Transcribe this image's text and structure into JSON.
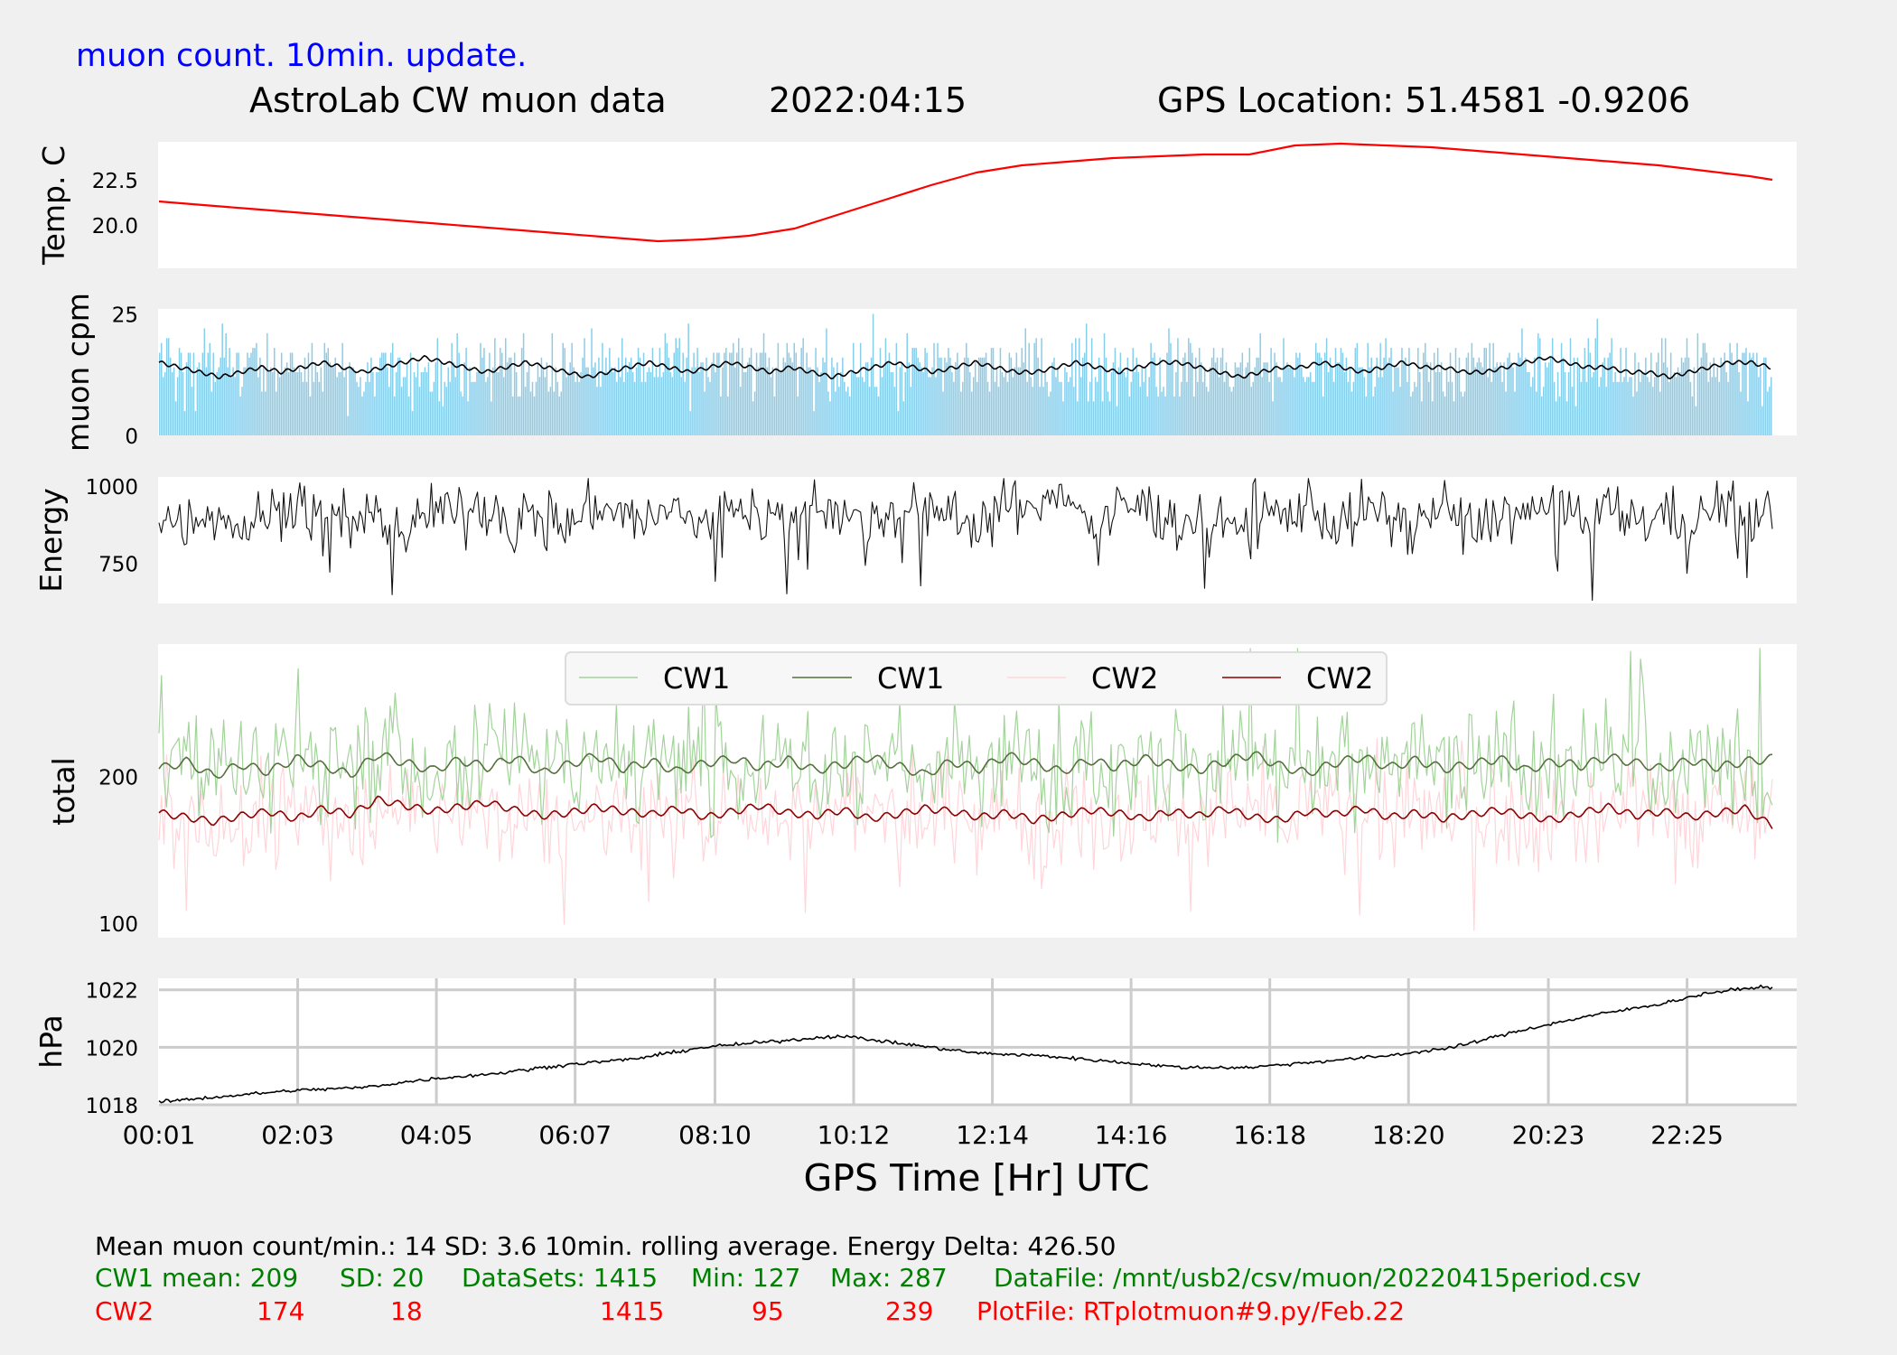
{
  "colors": {
    "background": "#f0f0f0",
    "panel": "#ffffff",
    "temperature": "#ff0000",
    "muon_bars": "#87ceeb",
    "rolling": "#000000",
    "cw1_raw": "#a2d49a",
    "cw1_avg": "#55703c",
    "cw2_raw": "#ffd5da",
    "cw2_avg": "#8b0000",
    "header_blue": "#0000ff",
    "cw1_text": "#008000",
    "cw2_text": "#ff0000",
    "grid": "#cccccc"
  },
  "header": {
    "subtitle": "muon count.  10min. update.",
    "title": "AstroLab CW muon data",
    "date": "2022:04:15",
    "location": "GPS Location: 51.4581   -0.9206"
  },
  "footer": {
    "stats_line": "Mean muon count/min.: 14  SD: 3.6   10min. rolling average.    Energy Delta:  426.50",
    "cw1": [
      "CW1 mean: 209",
      "SD: 20",
      "DataSets: 1415",
      "Min: 127",
      "Max: 287",
      "DataFile: /mnt/usb2/csv/muon/20220415period.csv"
    ],
    "cw2": [
      "CW2",
      "174",
      "18",
      "1415",
      "95",
      "239",
      "PlotFile: RTplotmuon#9.py/Feb.22"
    ]
  },
  "chart_data": [
    {
      "type": "line",
      "ylabel": "Temp. C",
      "ylim": [
        17.6,
        24.6
      ],
      "yticks": [
        "20.0",
        "22.5"
      ],
      "ytick_values": [
        20.0,
        22.5
      ],
      "x": [
        "00:01",
        "00:40",
        "01:20",
        "02:00",
        "02:40",
        "03:20",
        "04:00",
        "04:40",
        "05:20",
        "06:00",
        "06:40",
        "07:20",
        "08:00",
        "08:40",
        "09:20",
        "10:00",
        "10:40",
        "11:20",
        "12:00",
        "12:40",
        "13:20",
        "14:00",
        "14:40",
        "15:20",
        "16:00",
        "16:40",
        "17:20",
        "18:00",
        "18:40",
        "19:20",
        "20:00",
        "20:40",
        "21:20",
        "22:00",
        "22:40",
        "23:20",
        "23:40"
      ],
      "series": [
        {
          "values": [
            21.3,
            21.1,
            20.9,
            20.7,
            20.5,
            20.3,
            20.1,
            19.9,
            19.7,
            19.5,
            19.3,
            19.1,
            19.2,
            19.4,
            19.8,
            20.6,
            21.4,
            22.2,
            22.9,
            23.3,
            23.5,
            23.7,
            23.8,
            23.9,
            23.9,
            24.4,
            24.5,
            24.4,
            24.3,
            24.1,
            23.9,
            23.7,
            23.5,
            23.3,
            23.0,
            22.7,
            22.5
          ]
        }
      ]
    },
    {
      "type": "bar",
      "ylabel": "muon cpm",
      "ylim": [
        0,
        26
      ],
      "yticks": [
        "0",
        "25"
      ],
      "ytick_values": [
        0,
        25
      ],
      "bar_count": 1415,
      "mean": 14,
      "sd": 3.6,
      "series": [
        {
          "values": [
            15,
            14,
            13,
            12,
            13,
            14,
            13,
            14,
            15,
            14,
            13,
            14,
            15,
            16,
            15,
            14,
            13,
            14,
            15,
            14,
            13,
            12,
            13,
            14,
            15,
            14,
            13,
            14,
            15,
            14,
            13,
            14,
            13,
            12,
            13,
            14,
            15,
            14,
            13,
            14,
            15,
            14,
            13,
            13,
            14,
            15,
            14,
            13,
            14,
            15,
            15,
            14,
            13,
            12,
            13,
            14,
            14,
            15,
            14,
            13,
            14,
            15,
            14,
            14,
            13,
            13,
            14,
            15,
            16,
            15,
            14,
            14,
            13,
            13,
            12,
            13,
            14,
            15,
            15,
            14
          ]
        }
      ]
    },
    {
      "type": "line",
      "ylabel": "Energy",
      "ylim": [
        620,
        1030
      ],
      "yticks": [
        "750",
        "1000"
      ],
      "ytick_values": [
        750,
        1000
      ],
      "energy_delta": 426.5,
      "series": [
        {
          "values": [
            905,
            880,
            930,
            860,
            910,
            950,
            870,
            920,
            895,
            840,
            935,
            900,
            960,
            880,
            915,
            870,
            945,
            905,
            890,
            925,
            860,
            950,
            910,
            880,
            970,
            900,
            865,
            935,
            895,
            920,
            880,
            945,
            900,
            1020,
            870,
            915,
            940,
            880,
            905,
            860,
            930,
            895,
            955,
            870,
            920,
            900,
            880,
            940,
            865,
            915,
            900,
            955,
            875,
            925,
            890,
            910,
            880,
            940,
            900,
            915
          ]
        }
      ]
    },
    {
      "type": "line",
      "ylabel": "total",
      "ylim": [
        90,
        290
      ],
      "yticks": [
        "100",
        "200"
      ],
      "ytick_values": [
        100,
        200
      ],
      "legend": "top-center",
      "series": [
        {
          "name": "CW1",
          "kind": "raw",
          "mean": 209,
          "sd": 20,
          "min": 127,
          "max": 287
        },
        {
          "name": "CW1",
          "kind": "rolling",
          "values": [
            205,
            210,
            200,
            208,
            203,
            212,
            207,
            201,
            215,
            209,
            204,
            211,
            206,
            213,
            202,
            208,
            214,
            205,
            210,
            203,
            209,
            212,
            206,
            211,
            204,
            208,
            213,
            207,
            201,
            210,
            205,
            214,
            209,
            203,
            211,
            206,
            212,
            208,
            204,
            210,
            215,
            207,
            202,
            209,
            213,
            206,
            211,
            205,
            208,
            212,
            204,
            210,
            207,
            213,
            209,
            205,
            211,
            206,
            210,
            212
          ]
        },
        {
          "name": "CW2",
          "kind": "raw",
          "mean": 174,
          "sd": 18,
          "min": 95,
          "max": 239
        },
        {
          "name": "CW2",
          "kind": "rolling",
          "values": [
            175,
            172,
            169,
            173,
            176,
            171,
            178,
            174,
            184,
            180,
            176,
            179,
            182,
            177,
            173,
            175,
            179,
            176,
            174,
            178,
            172,
            176,
            180,
            175,
            173,
            177,
            171,
            174,
            178,
            176,
            172,
            175,
            170,
            173,
            177,
            175,
            171,
            176,
            173,
            178,
            172,
            170,
            176,
            174,
            178,
            172,
            175,
            171,
            174,
            177,
            173,
            170,
            175,
            179,
            173,
            176,
            172,
            175,
            178,
            166
          ]
        }
      ]
    },
    {
      "type": "line",
      "ylabel": "hPa",
      "xlabel": "GPS Time  [Hr] UTC",
      "ylim": [
        1018,
        1022.4
      ],
      "yticks": [
        "1018",
        "1020",
        "1022"
      ],
      "ytick_values": [
        1018,
        1020,
        1022
      ],
      "xticks": [
        "00:01",
        "02:03",
        "04:05",
        "06:07",
        "08:10",
        "10:12",
        "12:14",
        "14:16",
        "16:18",
        "18:20",
        "20:23",
        "22:25"
      ],
      "grid": true,
      "x": [
        "00:01",
        "01:00",
        "02:00",
        "03:00",
        "04:00",
        "05:00",
        "06:00",
        "07:00",
        "08:00",
        "09:00",
        "10:00",
        "11:00",
        "12:00",
        "13:00",
        "14:00",
        "15:00",
        "16:00",
        "17:00",
        "18:00",
        "19:00",
        "20:00",
        "21:00",
        "22:00",
        "22:45",
        "23:30"
      ],
      "series": [
        {
          "values": [
            1018.1,
            1018.3,
            1018.5,
            1018.6,
            1018.9,
            1019.1,
            1019.4,
            1019.6,
            1020.0,
            1020.2,
            1020.4,
            1020.1,
            1019.8,
            1019.7,
            1019.5,
            1019.3,
            1019.3,
            1019.5,
            1019.7,
            1020.0,
            1020.6,
            1021.1,
            1021.5,
            1021.9,
            1022.1
          ]
        }
      ]
    }
  ]
}
